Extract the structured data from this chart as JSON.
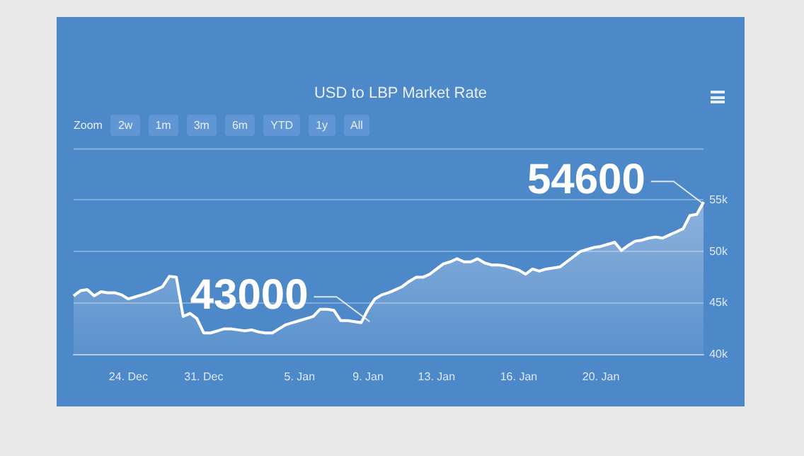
{
  "chart_data": {
    "type": "area",
    "title": "USD to LBP Market Rate",
    "categories": [
      null,
      null,
      null,
      null,
      null,
      null,
      null,
      null,
      "24. Dec",
      null,
      null,
      null,
      null,
      null,
      null,
      null,
      null,
      null,
      null,
      "31. Dec",
      null,
      null,
      null,
      null,
      null,
      null,
      null,
      null,
      null,
      null,
      null,
      null,
      null,
      "5. Jan",
      null,
      null,
      null,
      null,
      null,
      null,
      null,
      null,
      null,
      "9. Jan",
      null,
      null,
      null,
      null,
      null,
      null,
      null,
      null,
      null,
      "13. Jan",
      null,
      null,
      null,
      null,
      null,
      null,
      null,
      null,
      null,
      null,
      null,
      "16. Jan",
      null,
      null,
      null,
      null,
      null,
      null,
      null,
      null,
      null,
      null,
      null,
      "20. Jan",
      null,
      null,
      null,
      null,
      null,
      null,
      null,
      null,
      null,
      null,
      null,
      null,
      null,
      null,
      null
    ],
    "series": [
      {
        "color": "#ffffff",
        "values": [
          45700,
          46200,
          46300,
          45700,
          46100,
          46000,
          46000,
          45800,
          45400,
          45600,
          45800,
          46000,
          46300,
          46600,
          47600,
          47500,
          43700,
          44000,
          43500,
          42100,
          42100,
          42300,
          42500,
          42500,
          42400,
          42300,
          42400,
          42200,
          42100,
          42100,
          42500,
          42900,
          43100,
          43300,
          43500,
          43700,
          44400,
          44400,
          44300,
          43300,
          43300,
          43200,
          43100,
          44400,
          45400,
          45800,
          46000,
          46300,
          46600,
          47100,
          47500,
          47500,
          47800,
          48300,
          48800,
          49000,
          49300,
          49000,
          49000,
          49300,
          48900,
          48700,
          48700,
          48600,
          48400,
          48200,
          47800,
          48300,
          48100,
          48300,
          48400,
          48500,
          49000,
          49500,
          50000,
          50200,
          50400,
          50500,
          50700,
          50900,
          50100,
          50600,
          51000,
          51100,
          51300,
          51400,
          51300,
          51600,
          51900,
          52200,
          53500,
          53600,
          54800
        ]
      }
    ],
    "ylim": [
      40000,
      60000
    ],
    "yticks": [
      {
        "value": 40000,
        "label": "40k"
      },
      {
        "value": 45000,
        "label": "45k"
      },
      {
        "value": 50000,
        "label": "50k"
      },
      {
        "value": 55000,
        "label": "55k"
      }
    ],
    "grid": "y",
    "legend": false,
    "marker": "none",
    "line_style": "solid",
    "annotations": [
      "Zoom",
      "2w",
      "1m",
      "3m",
      "6m",
      "YTD",
      "1y",
      "All",
      "43000",
      "54600"
    ]
  }
}
